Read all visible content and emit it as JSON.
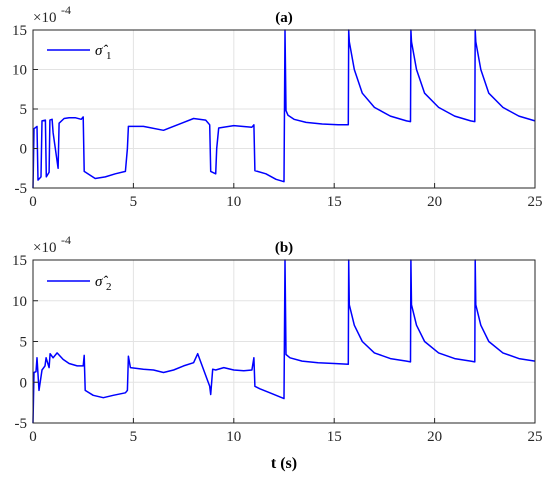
{
  "chart_data": {
    "type": "line",
    "xlabel": "t (s)",
    "colors": {
      "series": "#0000ff",
      "grid": "#e3e3e3",
      "axis": "#262626"
    },
    "grid": true,
    "legend_placement": "top-left",
    "panels": [
      {
        "title": "(a)",
        "y_exponent_label": "×10",
        "y_exponent_power": "-4",
        "legend": {
          "symbol": "σ̂",
          "subscript": "1"
        },
        "xlim": [
          0,
          25
        ],
        "ylim": [
          -5,
          15
        ],
        "xticks": [
          "0",
          "5",
          "10",
          "15",
          "20",
          "25"
        ],
        "yticks": [
          "-5",
          "0",
          "5",
          "10",
          "15"
        ],
        "series": {
          "x": [
            0,
            0.05,
            0.2,
            0.25,
            0.4,
            0.45,
            0.62,
            0.66,
            0.8,
            0.84,
            0.95,
            1.0,
            1.25,
            1.3,
            1.55,
            1.8,
            2.1,
            2.4,
            2.5,
            2.55,
            3.1,
            3.6,
            4.1,
            4.6,
            4.7,
            4.75,
            5.5,
            6.5,
            7.5,
            8.0,
            8.6,
            8.8,
            8.85,
            9.1,
            9.15,
            9.25,
            10.0,
            10.9,
            11.0,
            11.05,
            11.6,
            12.1,
            12.5,
            12.55,
            12.6,
            12.7,
            13.0,
            13.6,
            14.4,
            15.2,
            15.7,
            15.72,
            15.75,
            16.0,
            16.4,
            17.0,
            17.8,
            18.6,
            18.8,
            18.82,
            18.85,
            19.1,
            19.5,
            20.2,
            21.0,
            21.8,
            22.0,
            22.02,
            22.05,
            22.3,
            22.7,
            23.4,
            24.2,
            25.0
          ],
          "y": [
            -5,
            2.5,
            2.8,
            -4,
            -3.6,
            3.5,
            3.6,
            -3.6,
            -3.0,
            3.6,
            3.7,
            2.0,
            -2.5,
            3.2,
            3.8,
            3.9,
            3.9,
            3.7,
            4.0,
            -2.9,
            -3.8,
            -3.6,
            -3.2,
            -2.9,
            0.0,
            2.8,
            2.8,
            2.3,
            3.3,
            3.8,
            3.6,
            3.0,
            -2.9,
            -3.2,
            0.0,
            2.6,
            2.9,
            2.7,
            3.0,
            -2.8,
            -3.2,
            -3.9,
            -4.2,
            15,
            4.8,
            4.2,
            3.7,
            3.3,
            3.1,
            3.0,
            3.0,
            15,
            13.5,
            10.0,
            7.0,
            5.2,
            4.1,
            3.5,
            3.4,
            15,
            13.5,
            10.0,
            7.0,
            5.2,
            4.1,
            3.5,
            3.4,
            15,
            13.5,
            10.0,
            7.0,
            5.2,
            4.1,
            3.5
          ]
        }
      },
      {
        "title": "(b)",
        "y_exponent_label": "×10",
        "y_exponent_power": "-4",
        "legend": {
          "symbol": "σ̂",
          "subscript": "2"
        },
        "xlim": [
          0,
          25
        ],
        "ylim": [
          -5,
          15
        ],
        "xticks": [
          "0",
          "5",
          "10",
          "15",
          "20",
          "25"
        ],
        "yticks": [
          "-5",
          "0",
          "5",
          "10",
          "15"
        ],
        "series": {
          "x": [
            0,
            0.05,
            0.15,
            0.2,
            0.3,
            0.45,
            0.6,
            0.65,
            0.8,
            0.85,
            1.0,
            1.2,
            1.5,
            1.8,
            2.2,
            2.5,
            2.55,
            2.6,
            3.0,
            3.5,
            4.0,
            4.6,
            4.7,
            4.75,
            4.85,
            5.5,
            6.0,
            6.5,
            7.0,
            7.5,
            8.0,
            8.2,
            8.5,
            8.8,
            8.85,
            8.95,
            9.1,
            9.5,
            10.0,
            10.5,
            10.9,
            11.0,
            11.05,
            11.3,
            11.8,
            12.5,
            12.55,
            12.6,
            12.8,
            13.4,
            14.2,
            15.0,
            15.7,
            15.72,
            15.75,
            16.0,
            16.4,
            17.0,
            17.8,
            18.6,
            18.8,
            18.82,
            18.85,
            19.1,
            19.5,
            20.2,
            21.0,
            21.8,
            22.0,
            22.02,
            22.05,
            22.3,
            22.7,
            23.4,
            24.2,
            25.0
          ],
          "y": [
            -5,
            1.2,
            1.3,
            3.0,
            -1.0,
            1.5,
            2.0,
            3.0,
            1.8,
            3.5,
            3.0,
            3.6,
            2.8,
            2.3,
            2.0,
            2.0,
            3.3,
            -1.0,
            -1.6,
            -1.9,
            -1.6,
            -1.3,
            -1.0,
            3.2,
            1.8,
            1.6,
            1.5,
            1.2,
            1.5,
            2.0,
            2.4,
            3.5,
            1.5,
            -0.5,
            -1.5,
            1.6,
            1.5,
            1.8,
            1.5,
            1.4,
            1.5,
            3.0,
            -0.5,
            -0.8,
            -1.3,
            -2.0,
            15,
            3.4,
            3.0,
            2.6,
            2.4,
            2.3,
            2.2,
            15,
            9.5,
            7.0,
            5.0,
            3.6,
            2.9,
            2.6,
            2.5,
            15,
            9.5,
            7.0,
            5.0,
            3.6,
            2.9,
            2.6,
            2.5,
            15,
            9.5,
            7.0,
            5.0,
            3.6,
            2.9,
            2.6
          ]
        }
      }
    ]
  }
}
